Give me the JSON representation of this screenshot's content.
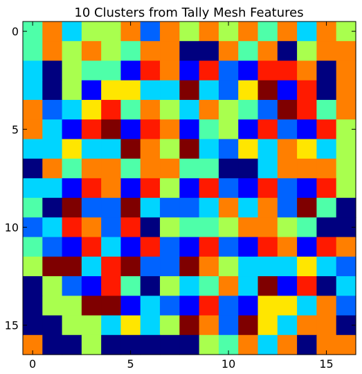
{
  "chart_data": {
    "type": "heatmap",
    "title": "10 Clusters from Tally Mesh Features",
    "xlabel": "",
    "ylabel": "",
    "rows": 17,
    "cols": 17,
    "xticks": [
      0,
      5,
      10,
      15
    ],
    "yticks": [
      0,
      5,
      10,
      15
    ],
    "xlim": [
      -0.5,
      16.5
    ],
    "ylim": [
      16.5,
      -0.5
    ],
    "grid": false,
    "colormap": "jet",
    "palette": {
      "0": "#00007f",
      "1": "#0000ff",
      "2": "#0063ff",
      "3": "#00d5ff",
      "4": "#4effa9",
      "5": "#a9ff4e",
      "6": "#ffe600",
      "7": "#ff7f00",
      "8": "#ff1a00",
      "9": "#7f0000"
    },
    "values": [
      [
        4,
        7,
        3,
        5,
        5,
        7,
        2,
        7,
        5,
        7,
        5,
        7,
        4,
        7,
        3,
        7,
        5
      ],
      [
        4,
        7,
        5,
        7,
        5,
        4,
        7,
        7,
        0,
        0,
        7,
        4,
        7,
        0,
        5,
        7,
        7
      ],
      [
        3,
        0,
        5,
        4,
        4,
        1,
        8,
        7,
        1,
        8,
        2,
        1,
        8,
        8,
        7,
        0,
        7
      ],
      [
        3,
        0,
        5,
        1,
        6,
        6,
        3,
        3,
        9,
        3,
        2,
        6,
        9,
        1,
        8,
        0,
        7
      ],
      [
        7,
        2,
        3,
        6,
        8,
        4,
        7,
        5,
        3,
        7,
        5,
        4,
        2,
        9,
        8,
        4,
        7
      ],
      [
        7,
        3,
        1,
        8,
        9,
        1,
        8,
        7,
        1,
        4,
        5,
        1,
        8,
        2,
        1,
        8,
        5
      ],
      [
        3,
        3,
        6,
        3,
        3,
        9,
        7,
        5,
        9,
        3,
        2,
        6,
        3,
        7,
        6,
        3,
        5
      ],
      [
        0,
        7,
        4,
        7,
        7,
        4,
        7,
        7,
        4,
        4,
        0,
        0,
        3,
        7,
        7,
        7,
        5
      ],
      [
        3,
        3,
        1,
        8,
        7,
        1,
        8,
        5,
        1,
        8,
        2,
        1,
        8,
        2,
        1,
        8,
        5
      ],
      [
        4,
        0,
        9,
        2,
        2,
        9,
        3,
        2,
        2,
        3,
        7,
        3,
        7,
        2,
        9,
        4,
        0
      ],
      [
        2,
        3,
        8,
        7,
        2,
        8,
        0,
        5,
        4,
        4,
        5,
        7,
        7,
        5,
        4,
        0,
        0
      ],
      [
        4,
        2,
        1,
        8,
        3,
        1,
        8,
        2,
        1,
        8,
        2,
        1,
        8,
        7,
        1,
        8,
        7
      ],
      [
        5,
        9,
        9,
        3,
        8,
        9,
        2,
        2,
        9,
        7,
        5,
        3,
        3,
        3,
        6,
        3,
        2
      ],
      [
        0,
        5,
        2,
        1,
        8,
        4,
        0,
        5,
        3,
        4,
        7,
        3,
        9,
        1,
        8,
        0,
        3
      ],
      [
        0,
        5,
        5,
        9,
        9,
        1,
        3,
        2,
        1,
        8,
        2,
        1,
        6,
        6,
        3,
        7,
        2
      ],
      [
        0,
        0,
        5,
        5,
        3,
        6,
        3,
        5,
        9,
        7,
        2,
        9,
        6,
        3,
        7,
        7,
        0
      ],
      [
        7,
        0,
        0,
        5,
        0,
        0,
        0,
        0,
        0,
        5,
        4,
        7,
        3,
        7,
        0,
        7,
        7
      ]
    ]
  }
}
